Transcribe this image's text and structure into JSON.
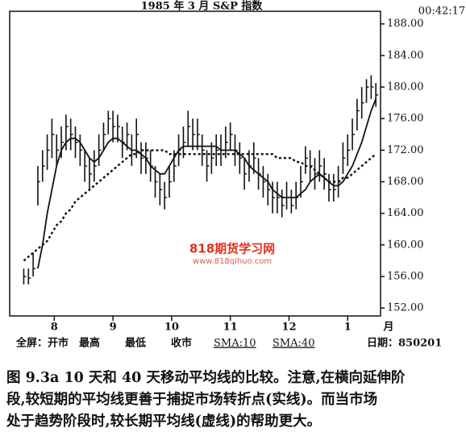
{
  "chart_data": {
    "type": "ohlc",
    "title": "1985 年 3 月 S&P 指数",
    "time": "00:42:17",
    "categories": [
      null,
      null,
      null,
      null,
      null,
      null,
      null,
      null,
      null,
      null,
      null,
      null,
      null,
      null,
      null,
      null,
      null,
      null,
      null,
      null,
      null,
      null,
      null,
      null,
      null,
      null,
      null,
      null,
      null,
      null,
      null,
      null,
      null,
      null,
      null,
      null,
      null,
      null,
      null,
      null,
      null,
      null,
      null,
      null,
      null,
      null,
      null,
      null,
      null,
      null,
      null,
      null,
      null,
      null,
      null,
      null,
      null,
      null,
      null,
      null,
      null,
      null,
      null,
      null,
      null,
      null,
      null,
      null,
      null,
      null,
      null,
      null,
      null,
      null,
      null,
      null
    ],
    "high": [
      157,
      157,
      159,
      170,
      172,
      174,
      176,
      174,
      175,
      176.5,
      176,
      175,
      174,
      172,
      171,
      172,
      174,
      175.5,
      177,
      177,
      176.5,
      175,
      175.5,
      174,
      176,
      173,
      173,
      172,
      170,
      169,
      168,
      170,
      172,
      174,
      175,
      177,
      176,
      176,
      174,
      172,
      173,
      174,
      174,
      175,
      175.5,
      174,
      173,
      171,
      172,
      173,
      171,
      170,
      169,
      168,
      168,
      167,
      168,
      167,
      168,
      170,
      172.5,
      172,
      171,
      172,
      171,
      169,
      169,
      170,
      173,
      174,
      176,
      178.5,
      180,
      181,
      181.5,
      180.5
    ],
    "low": [
      155,
      155,
      156,
      165,
      168,
      169.5,
      171,
      170,
      171,
      172,
      172,
      171,
      170,
      168,
      167,
      168,
      170,
      172,
      174,
      173,
      173,
      171,
      172,
      170,
      171,
      169,
      169,
      168,
      166,
      165,
      164.5,
      166,
      168,
      170,
      171,
      172.5,
      172,
      172,
      170,
      168,
      169,
      170,
      170,
      171,
      172,
      170,
      169,
      167,
      168,
      169,
      167,
      166,
      165,
      164,
      164,
      163.5,
      164.5,
      164,
      164.5,
      166,
      169,
      168,
      167,
      168,
      167,
      165.5,
      165.5,
      166,
      169,
      170,
      172,
      174.5,
      176,
      178,
      178.5,
      177.5
    ],
    "close": [
      156,
      155.8,
      157,
      168,
      170,
      172,
      174,
      172,
      173,
      175,
      174,
      173,
      172,
      170,
      169,
      170,
      172,
      174,
      176,
      175,
      175,
      173,
      174,
      172,
      174,
      171,
      171,
      170,
      168,
      167,
      166,
      168,
      170,
      172,
      173,
      175,
      174,
      174,
      172,
      170,
      171,
      172,
      172,
      173,
      174,
      172,
      171,
      169,
      170,
      171,
      169,
      168,
      167,
      166,
      166,
      165,
      166,
      165,
      166,
      168,
      171,
      170,
      169,
      170,
      169,
      167,
      167,
      168,
      171,
      172,
      174,
      177,
      178,
      180,
      180,
      179
    ],
    "bar_color": "#111111",
    "lines": [
      {
        "name": "SMA:10",
        "style": "solid",
        "color": "#111111",
        "values": [
          null,
          null,
          null,
          157,
          160,
          164,
          167,
          170,
          172,
          173,
          173.5,
          173.5,
          173,
          172,
          171,
          170.5,
          171,
          172,
          173,
          173.5,
          173.5,
          173,
          172.5,
          172,
          172,
          171.5,
          171,
          170,
          169.5,
          169,
          169,
          170,
          171,
          172,
          172.5,
          172.5,
          172.5,
          172.5,
          172.5,
          172.5,
          172.5,
          172.5,
          172,
          172,
          172,
          172,
          171.5,
          171,
          170,
          169.5,
          169,
          168.5,
          168,
          167,
          166.5,
          166,
          166,
          166,
          166,
          166.5,
          167,
          168,
          168.5,
          169,
          168.5,
          168,
          167.5,
          167.5,
          168,
          169,
          170,
          171.5,
          173,
          175,
          177,
          178.5
        ]
      },
      {
        "name": "SMA:40",
        "style": "dashed",
        "color": "#111111",
        "values": [
          158,
          158.5,
          159,
          159.5,
          160,
          160.5,
          161.5,
          162.5,
          163,
          164,
          164.5,
          165.5,
          166,
          166.5,
          167,
          167.5,
          168,
          168.5,
          169,
          169.5,
          170,
          170.5,
          171,
          171.5,
          171.5,
          172,
          172,
          172,
          172,
          172,
          172,
          171.5,
          171.5,
          171.5,
          171.5,
          171.5,
          171.5,
          171.5,
          171.5,
          171.5,
          171.5,
          171.5,
          171.5,
          171.5,
          171.5,
          171.5,
          171.5,
          171.5,
          171.5,
          171.5,
          171.5,
          171.5,
          171.5,
          171.5,
          171,
          171,
          171,
          171,
          170.5,
          170.5,
          170,
          170,
          169.5,
          169,
          168.5,
          168,
          168,
          168,
          168.5,
          168.5,
          169,
          169.5,
          170,
          170.5,
          171,
          171.5
        ]
      }
    ],
    "xlim": [
      -3,
      76
    ],
    "xticks": [
      {
        "value": 6.5,
        "label": "8"
      },
      {
        "value": 19,
        "label": "9"
      },
      {
        "value": 31.5,
        "label": "10"
      },
      {
        "value": 44,
        "label": "11"
      },
      {
        "value": 56.5,
        "label": "12"
      },
      {
        "value": 69,
        "label": "1"
      }
    ],
    "x_label": "月",
    "ylim": [
      151,
      189.6
    ],
    "yticks": [
      {
        "value": 152,
        "label": "152.00"
      },
      {
        "value": 156,
        "label": "156.00"
      },
      {
        "value": 160,
        "label": "160.00"
      },
      {
        "value": 164,
        "label": "164.00"
      },
      {
        "value": 168,
        "label": "168.00"
      },
      {
        "value": 172,
        "label": "172.00"
      },
      {
        "value": 176,
        "label": "176.00"
      },
      {
        "value": 180,
        "label": "180.00"
      },
      {
        "value": 184,
        "label": "184.00"
      },
      {
        "value": 188,
        "label": "188.00"
      }
    ],
    "status_bar": [
      "全屏：开市",
      "最高",
      "最低",
      "收市",
      "日期：850201"
    ],
    "watermark": {
      "title": "818期货学习网",
      "url": "www.818qihuo.com"
    },
    "caption": [
      "图 9.3a   10 天和 40 天移动平均线的比较。注意,在横向延伸阶",
      "段,较短期的平均线更善于捕捉市场转折点(实线)。而当市场",
      "处于趋势阶段时,较长期平均线(虚线)的帮助更大。"
    ]
  }
}
